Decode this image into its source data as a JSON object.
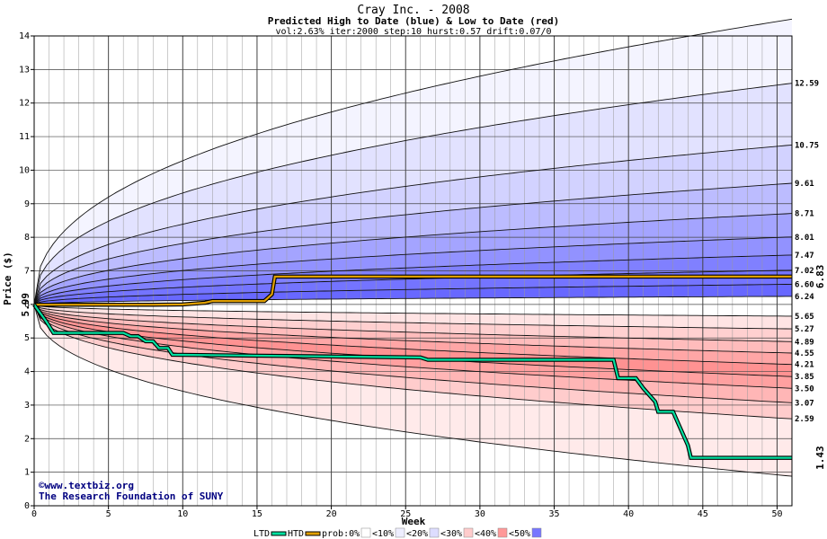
{
  "chart_data": {
    "type": "area",
    "title": "Cray Inc. - 2008",
    "subtitle": "Predicted High to Date (blue) &  Low to Date (red)",
    "params": "vol:2.63% iter:2000 step:10 hurst:0.57 drift:0.07/0",
    "xlabel": "Week",
    "ylabel": "Price ($)",
    "xlim": [
      0,
      51
    ],
    "ylim": [
      0,
      14
    ],
    "xticks": [
      "0",
      "5",
      "10",
      "15",
      "20",
      "25",
      "30",
      "35",
      "40",
      "45",
      "50"
    ],
    "yticks": [
      "0",
      "1",
      "2",
      "3",
      "4",
      "5",
      "6",
      "7",
      "8",
      "9",
      "10",
      "11",
      "12",
      "13",
      "14"
    ],
    "start_price": 5.99,
    "start_label": "5.99",
    "htd_last_label": "6.83",
    "ltd_last_label": "1.43",
    "credit_lines": [
      "©www.textbiz.org",
      "The Research Foundation of SUNY"
    ],
    "right_labels": [
      "12.59",
      "10.75",
      "9.61",
      "8.71",
      "8.01",
      "7.47",
      "7.02",
      "6.60",
      "6.24",
      "5.65",
      "5.27",
      "4.89",
      "4.55",
      "4.21",
      "3.85",
      "3.50",
      "3.07",
      "2.59"
    ],
    "high_curves": [
      {
        "label": "",
        "end": 14.5
      },
      {
        "label": "12.59",
        "end": 12.59
      },
      {
        "label": "10.75",
        "end": 10.75
      },
      {
        "label": "9.61",
        "end": 9.61
      },
      {
        "label": "8.71",
        "end": 8.71
      },
      {
        "label": "8.01",
        "end": 8.01
      },
      {
        "label": "7.47",
        "end": 7.47
      },
      {
        "label": "7.02",
        "end": 7.02
      },
      {
        "label": "6.60",
        "end": 6.6
      },
      {
        "label": "6.24",
        "end": 6.24
      }
    ],
    "low_curves": [
      {
        "label": "5.65",
        "end": 5.65
      },
      {
        "label": "5.27",
        "end": 5.27
      },
      {
        "label": "4.89",
        "end": 4.89
      },
      {
        "label": "4.55",
        "end": 4.55
      },
      {
        "label": "4.21",
        "end": 4.21
      },
      {
        "label": "3.85",
        "end": 3.85
      },
      {
        "label": "3.50",
        "end": 3.5
      },
      {
        "label": "3.07",
        "end": 3.07
      },
      {
        "label": "2.59",
        "end": 2.59
      },
      {
        "label": "",
        "end": 0.88
      }
    ],
    "htd_series": {
      "name": "HTD",
      "points": [
        [
          0,
          5.99
        ],
        [
          5,
          5.99
        ],
        [
          8,
          5.99
        ],
        [
          10,
          6.0
        ],
        [
          11.5,
          6.05
        ],
        [
          12,
          6.1
        ],
        [
          14,
          6.1
        ],
        [
          15.5,
          6.1
        ],
        [
          16,
          6.3
        ],
        [
          16.2,
          6.83
        ],
        [
          51,
          6.83
        ]
      ]
    },
    "ltd_series": {
      "name": "LTD",
      "points": [
        [
          0,
          5.99
        ],
        [
          0.8,
          5.5
        ],
        [
          1.3,
          5.15
        ],
        [
          5,
          5.15
        ],
        [
          6,
          5.15
        ],
        [
          6.5,
          5.05
        ],
        [
          7,
          5.05
        ],
        [
          7.5,
          4.9
        ],
        [
          8,
          4.9
        ],
        [
          8.4,
          4.7
        ],
        [
          9,
          4.7
        ],
        [
          9.3,
          4.5
        ],
        [
          20,
          4.45
        ],
        [
          26,
          4.42
        ],
        [
          26.5,
          4.35
        ],
        [
          39,
          4.35
        ],
        [
          39.3,
          3.8
        ],
        [
          40.5,
          3.8
        ],
        [
          41,
          3.5
        ],
        [
          41.8,
          3.1
        ],
        [
          42,
          2.8
        ],
        [
          43,
          2.8
        ],
        [
          43.3,
          2.5
        ],
        [
          44,
          1.8
        ],
        [
          44.2,
          1.43
        ],
        [
          51,
          1.43
        ]
      ]
    },
    "legend": [
      {
        "label": "LTD",
        "kind": "line",
        "color": "#00e0a0"
      },
      {
        "label": "HTD",
        "kind": "line",
        "color": "#e0a000"
      },
      {
        "label": "prob:0%",
        "kind": "box",
        "color": "#ffffff"
      },
      {
        "label": "<10%",
        "kind": "box",
        "color": "#eeeeff"
      },
      {
        "label": "<20%",
        "kind": "box",
        "color": "#ddddff"
      },
      {
        "label": "<30%",
        "kind": "box",
        "color": "#ffcccc"
      },
      {
        "label": "<40%",
        "kind": "box",
        "color": "#ff9999"
      },
      {
        "label": "<50%",
        "kind": "box",
        "color": "#7777ff"
      }
    ],
    "grid": true,
    "colors": {
      "high_fill": [
        "#f4f4ff",
        "#e2e2ff",
        "#d2d2ff",
        "#bcbcff",
        "#a4a4ff",
        "#9292ff",
        "#8080ff",
        "#7474ff",
        "#6868ff"
      ],
      "low_fill": [
        "#ffe4e4",
        "#ffd0d0",
        "#ffbcbc",
        "#ffa6a6",
        "#ff9292",
        "#ffa0a0",
        "#ffb6b6",
        "#ffcccc",
        "#ffeaea"
      ],
      "htd": "#e0a000",
      "ltd": "#00e0a0",
      "start_label": "#008000",
      "htd_label": "#c09000",
      "ltd_label": "#00a070"
    }
  }
}
